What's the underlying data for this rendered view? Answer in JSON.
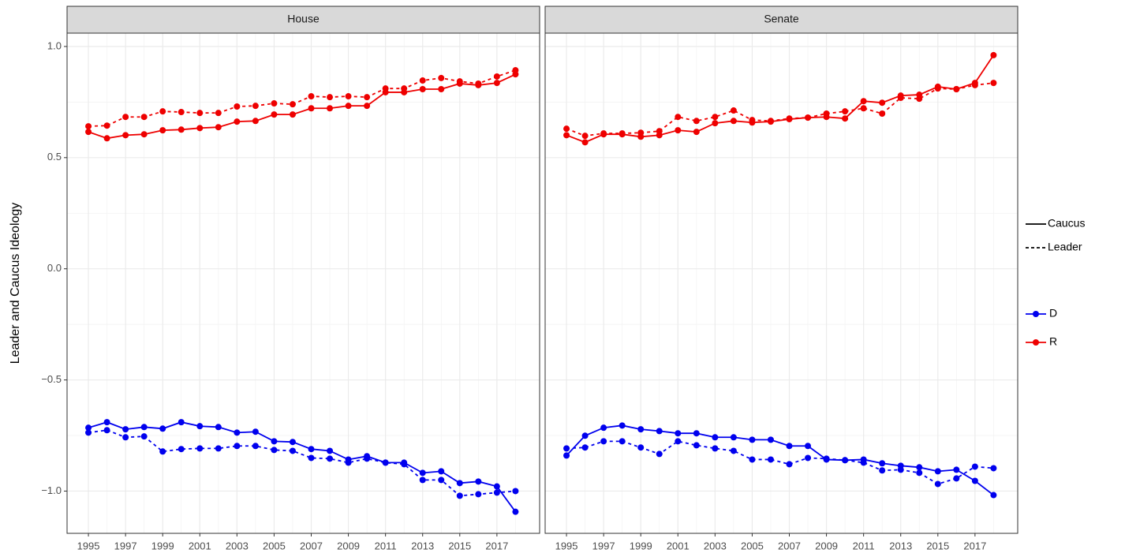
{
  "legend": {
    "linetype": [
      {
        "name": "Caucus",
        "dash": "solid"
      },
      {
        "name": "Leader",
        "dash": "dashed"
      }
    ],
    "color": [
      {
        "name": "D",
        "color": "#0000ee"
      },
      {
        "name": "R",
        "color": "#ee0000"
      }
    ]
  },
  "chart_data": [
    {
      "type": "line",
      "title": "House",
      "ylabel": "Leader and Caucus Ideology",
      "x": [
        1995,
        1996,
        1997,
        1998,
        1999,
        2000,
        2001,
        2002,
        2003,
        2004,
        2005,
        2006,
        2007,
        2008,
        2009,
        2010,
        2011,
        2012,
        2013,
        2014,
        2015,
        2016,
        2017,
        2018
      ],
      "xlim": [
        1993.85,
        2019.3
      ],
      "xticks": [
        1995,
        1997,
        1999,
        2001,
        2003,
        2005,
        2007,
        2009,
        2011,
        2013,
        2015,
        2017
      ],
      "ylim": [
        -1.19,
        1.06
      ],
      "yticks": [
        {
          "value": -1.0,
          "label": "−1.0"
        },
        {
          "value": -0.5,
          "label": "−0.5"
        },
        {
          "value": 0.0,
          "label": "0.0"
        },
        {
          "value": 0.5,
          "label": "0.5"
        },
        {
          "value": 1.0,
          "label": "1.0"
        }
      ],
      "grid": true,
      "series": [
        {
          "color": "#ee0000",
          "linetype": "solid",
          "values": [
            0.616,
            0.587,
            0.601,
            0.605,
            0.623,
            0.626,
            0.633,
            0.637,
            0.662,
            0.665,
            0.694,
            0.694,
            0.722,
            0.722,
            0.733,
            0.733,
            0.794,
            0.794,
            0.808,
            0.808,
            0.833,
            0.826,
            0.836,
            0.875
          ]
        },
        {
          "color": "#ee0000",
          "linetype": "dashed",
          "values": [
            0.641,
            0.644,
            0.683,
            0.683,
            0.708,
            0.705,
            0.701,
            0.701,
            0.73,
            0.733,
            0.744,
            0.74,
            0.776,
            0.772,
            0.776,
            0.772,
            0.811,
            0.811,
            0.847,
            0.858,
            0.843,
            0.833,
            0.865,
            0.893
          ]
        },
        {
          "color": "#0000ee",
          "linetype": "solid",
          "values": [
            -0.715,
            -0.69,
            -0.722,
            -0.712,
            -0.719,
            -0.69,
            -0.708,
            -0.712,
            -0.737,
            -0.733,
            -0.776,
            -0.779,
            -0.811,
            -0.819,
            -0.858,
            -0.843,
            -0.872,
            -0.872,
            -0.918,
            -0.911,
            -0.964,
            -0.957,
            -0.979,
            -1.093
          ]
        },
        {
          "color": "#0000ee",
          "linetype": "dashed",
          "values": [
            -0.737,
            -0.726,
            -0.758,
            -0.754,
            -0.822,
            -0.811,
            -0.808,
            -0.808,
            -0.797,
            -0.797,
            -0.815,
            -0.819,
            -0.851,
            -0.854,
            -0.872,
            -0.854,
            -0.872,
            -0.879,
            -0.95,
            -0.95,
            -1.021,
            -1.014,
            -1.007,
            -1.0
          ]
        }
      ]
    },
    {
      "type": "line",
      "title": "Senate",
      "x": [
        1995,
        1996,
        1997,
        1998,
        1999,
        2000,
        2001,
        2002,
        2003,
        2004,
        2005,
        2006,
        2007,
        2008,
        2009,
        2010,
        2011,
        2012,
        2013,
        2014,
        2015,
        2016,
        2017,
        2018
      ],
      "xlim": [
        1993.85,
        2019.3
      ],
      "xticks": [
        1995,
        1997,
        1999,
        2001,
        2003,
        2005,
        2007,
        2009,
        2011,
        2013,
        2015,
        2017
      ],
      "ylim": [
        -1.19,
        1.06
      ],
      "yticks": [
        {
          "value": -1.0,
          "label": "−1.0"
        },
        {
          "value": -0.5,
          "label": "−0.5"
        },
        {
          "value": 0.0,
          "label": "0.0"
        },
        {
          "value": 0.5,
          "label": "0.5"
        },
        {
          "value": 1.0,
          "label": "1.0"
        }
      ],
      "grid": true,
      "series": [
        {
          "color": "#ee0000",
          "linetype": "solid",
          "values": [
            0.601,
            0.569,
            0.605,
            0.605,
            0.594,
            0.601,
            0.623,
            0.616,
            0.655,
            0.665,
            0.658,
            0.662,
            0.673,
            0.68,
            0.683,
            0.676,
            0.754,
            0.747,
            0.779,
            0.783,
            0.819,
            0.808,
            0.836,
            0.961
          ]
        },
        {
          "color": "#ee0000",
          "linetype": "dashed",
          "values": [
            0.63,
            0.598,
            0.609,
            0.609,
            0.612,
            0.619,
            0.683,
            0.665,
            0.683,
            0.712,
            0.669,
            0.665,
            0.676,
            0.68,
            0.698,
            0.708,
            0.722,
            0.698,
            0.769,
            0.765,
            0.811,
            0.808,
            0.826,
            0.836
          ]
        },
        {
          "color": "#0000ee",
          "linetype": "solid",
          "values": [
            -0.84,
            -0.751,
            -0.715,
            -0.705,
            -0.722,
            -0.73,
            -0.74,
            -0.74,
            -0.758,
            -0.758,
            -0.769,
            -0.769,
            -0.797,
            -0.797,
            -0.858,
            -0.861,
            -0.858,
            -0.875,
            -0.886,
            -0.893,
            -0.911,
            -0.904,
            -0.954,
            -1.018
          ]
        },
        {
          "color": "#0000ee",
          "linetype": "dashed",
          "values": [
            -0.808,
            -0.804,
            -0.776,
            -0.776,
            -0.804,
            -0.833,
            -0.776,
            -0.794,
            -0.808,
            -0.819,
            -0.858,
            -0.858,
            -0.879,
            -0.851,
            -0.854,
            -0.861,
            -0.872,
            -0.907,
            -0.904,
            -0.918,
            -0.968,
            -0.943,
            -0.89,
            -0.897
          ]
        }
      ]
    }
  ]
}
